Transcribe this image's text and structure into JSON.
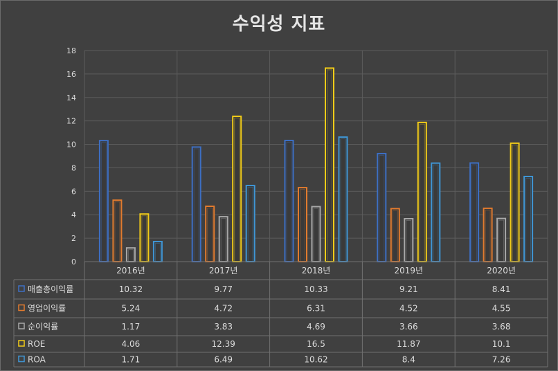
{
  "chart_data": {
    "type": "bar",
    "title": "수익성 지표",
    "categories": [
      "2016년",
      "2017년",
      "2018년",
      "2019년",
      "2020년"
    ],
    "series": [
      {
        "name": "매출총이익률",
        "values": [
          10.32,
          9.77,
          10.33,
          9.21,
          8.41
        ],
        "color": "#3d6fc4"
      },
      {
        "name": "영업이익률",
        "values": [
          5.24,
          4.72,
          6.31,
          4.52,
          4.55
        ],
        "color": "#e27b2e"
      },
      {
        "name": "순이익률",
        "values": [
          1.17,
          3.83,
          4.69,
          3.66,
          3.68
        ],
        "color": "#a8a8a8"
      },
      {
        "name": "ROE",
        "values": [
          4.06,
          12.39,
          16.5,
          11.87,
          10.1
        ],
        "color": "#f2cc18"
      },
      {
        "name": "ROA",
        "values": [
          1.71,
          6.49,
          10.62,
          8.4,
          7.26
        ],
        "color": "#3f95d4"
      }
    ],
    "yticks": [
      "0",
      "2",
      "4",
      "6",
      "8",
      "10",
      "12",
      "14",
      "16",
      "18"
    ],
    "ylim": [
      0,
      18
    ],
    "grid": true,
    "legend": "data-table"
  },
  "display": {
    "table": [
      [
        "10.32",
        "9.77",
        "10.33",
        "9.21",
        "8.41"
      ],
      [
        "5.24",
        "4.72",
        "6.31",
        "4.52",
        "4.55"
      ],
      [
        "1.17",
        "3.83",
        "4.69",
        "3.66",
        "3.68"
      ],
      [
        "4.06",
        "12.39",
        "16.5",
        "11.87",
        "10.1"
      ],
      [
        "1.71",
        "6.49",
        "10.62",
        "8.4",
        "7.26"
      ]
    ]
  }
}
